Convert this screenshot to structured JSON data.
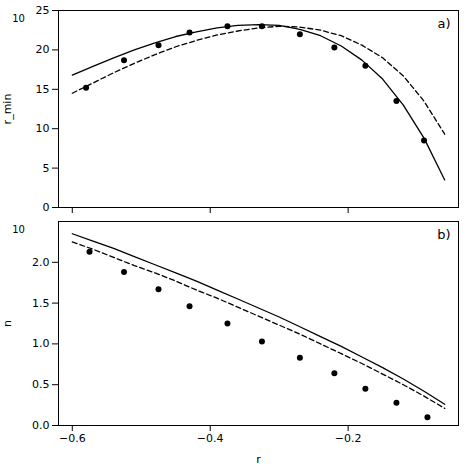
{
  "chart_data": [
    {
      "type": "line",
      "title": "a)",
      "ylabel": "r_min",
      "annotations": [
        "10"
      ],
      "xlim": [
        -0.62,
        -0.04
      ],
      "ylim": [
        0,
        25
      ],
      "xticks": [
        -0.6,
        -0.4,
        -0.2
      ],
      "yticks": [
        0,
        5,
        10,
        15,
        20,
        25
      ],
      "tick_labels": "y",
      "grid": false,
      "series": [
        {
          "type": "line",
          "line_style": "solid",
          "color": "#000000",
          "x": [
            -0.6,
            -0.57,
            -0.54,
            -0.51,
            -0.48,
            -0.45,
            -0.42,
            -0.39,
            -0.36,
            -0.33,
            -0.3,
            -0.27,
            -0.24,
            -0.21,
            -0.18,
            -0.15,
            -0.12,
            -0.09,
            -0.06
          ],
          "values": [
            16.8,
            17.9,
            19.0,
            20.0,
            20.9,
            21.7,
            22.3,
            22.8,
            23.1,
            23.2,
            23.1,
            22.6,
            21.8,
            20.5,
            18.7,
            16.3,
            13.0,
            8.8,
            3.5
          ]
        },
        {
          "type": "line",
          "line_style": "dashed",
          "color": "#000000",
          "x": [
            -0.6,
            -0.57,
            -0.54,
            -0.51,
            -0.48,
            -0.45,
            -0.42,
            -0.39,
            -0.36,
            -0.33,
            -0.3,
            -0.27,
            -0.24,
            -0.21,
            -0.18,
            -0.15,
            -0.12,
            -0.09,
            -0.06
          ],
          "values": [
            14.5,
            15.8,
            17.1,
            18.3,
            19.4,
            20.4,
            21.2,
            21.9,
            22.4,
            22.8,
            23.0,
            22.9,
            22.5,
            21.8,
            20.6,
            19.0,
            16.7,
            13.5,
            9.3
          ]
        },
        {
          "type": "scatter",
          "marker": "circle",
          "color": "#000000",
          "x": [
            -0.58,
            -0.525,
            -0.475,
            -0.43,
            -0.375,
            -0.325,
            -0.27,
            -0.22,
            -0.175,
            -0.13,
            -0.09
          ],
          "values": [
            15.2,
            18.7,
            20.6,
            22.2,
            23.0,
            23.0,
            22.0,
            20.3,
            18.0,
            13.5,
            8.5
          ]
        }
      ]
    },
    {
      "type": "line",
      "title": "b)",
      "xlabel": "r",
      "ylabel": "n",
      "annotations": [
        "10"
      ],
      "xlim": [
        -0.62,
        -0.04
      ],
      "ylim": [
        0,
        2.5
      ],
      "xticks": [
        -0.6,
        -0.4,
        -0.2
      ],
      "yticks": [
        {
          "value": 0,
          "label": "0.0"
        },
        0.5,
        {
          "value": 1.0,
          "label": "1.0"
        },
        1.5,
        {
          "value": 2.0,
          "label": "2.0"
        }
      ],
      "grid": false,
      "series": [
        {
          "type": "line",
          "line_style": "solid",
          "color": "#000000",
          "x": [
            -0.6,
            -0.57,
            -0.54,
            -0.51,
            -0.48,
            -0.45,
            -0.42,
            -0.39,
            -0.36,
            -0.33,
            -0.3,
            -0.27,
            -0.24,
            -0.21,
            -0.18,
            -0.15,
            -0.12,
            -0.09,
            -0.06
          ],
          "values": [
            2.35,
            2.26,
            2.17,
            2.07,
            1.97,
            1.87,
            1.77,
            1.66,
            1.55,
            1.44,
            1.33,
            1.21,
            1.09,
            0.97,
            0.84,
            0.71,
            0.57,
            0.42,
            0.26
          ]
        },
        {
          "type": "line",
          "line_style": "dashed",
          "color": "#000000",
          "x": [
            -0.6,
            -0.57,
            -0.54,
            -0.51,
            -0.48,
            -0.45,
            -0.42,
            -0.39,
            -0.36,
            -0.33,
            -0.3,
            -0.27,
            -0.24,
            -0.21,
            -0.18,
            -0.15,
            -0.12,
            -0.09,
            -0.06
          ],
          "values": [
            2.25,
            2.16,
            2.06,
            1.96,
            1.87,
            1.77,
            1.66,
            1.56,
            1.45,
            1.34,
            1.23,
            1.12,
            1.0,
            0.88,
            0.76,
            0.63,
            0.5,
            0.36,
            0.21
          ]
        },
        {
          "type": "scatter",
          "marker": "circle",
          "color": "#000000",
          "x": [
            -0.575,
            -0.525,
            -0.475,
            -0.43,
            -0.375,
            -0.325,
            -0.27,
            -0.22,
            -0.175,
            -0.13,
            -0.085
          ],
          "values": [
            2.13,
            1.88,
            1.67,
            1.46,
            1.25,
            1.03,
            0.83,
            0.64,
            0.45,
            0.28,
            0.1
          ]
        }
      ]
    }
  ]
}
